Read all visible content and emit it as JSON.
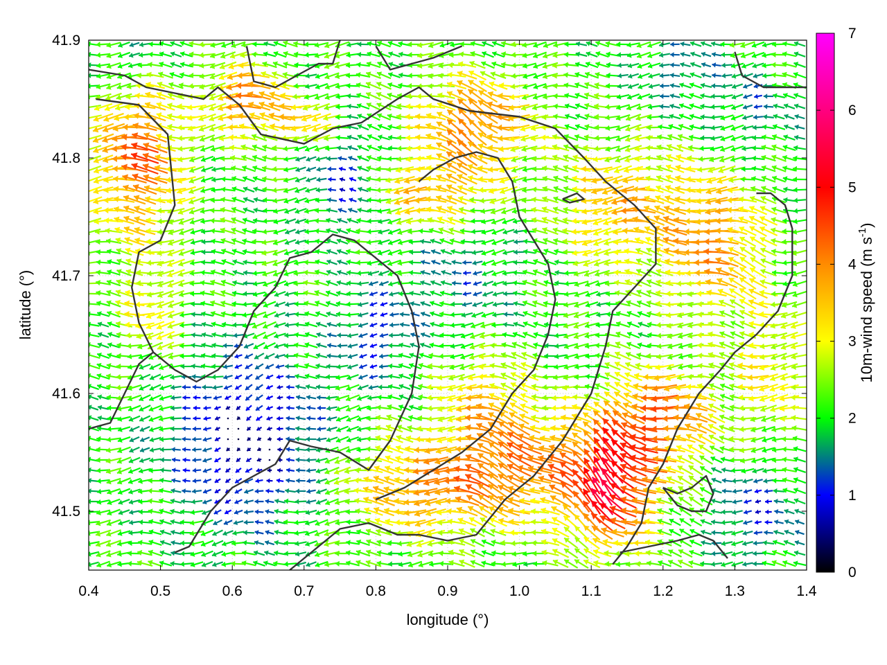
{
  "chart_data": {
    "type": "vector-field",
    "xlabel": "longitude (°)",
    "ylabel": "latitude (°)",
    "colorbar_label": "10m-wind speed (m s",
    "colorbar_label_sup": "-1",
    "colorbar_label_end": ")",
    "xlim": [
      0.4,
      1.4
    ],
    "ylim": [
      41.45,
      41.9
    ],
    "xticks": [
      "0.4",
      "0.5",
      "0.6",
      "0.7",
      "0.8",
      "0.9",
      "1.0",
      "1.1",
      "1.2",
      "1.3",
      "1.4"
    ],
    "yticks": [
      "41.5",
      "41.6",
      "41.7",
      "41.8",
      "41.9"
    ],
    "colorbar_range": [
      0,
      7
    ],
    "colorbar_ticks": [
      "0",
      "1",
      "2",
      "3",
      "4",
      "5",
      "6",
      "7"
    ],
    "colormap": [
      "#000000",
      "#0000ff",
      "#00ff00",
      "#ffff00",
      "#ff8c00",
      "#ff0000",
      "#ff00ff"
    ],
    "grid": "dotted",
    "contour_color": "#333333",
    "contours": [
      [
        [
          0.4,
          41.875
        ],
        [
          0.45,
          41.87
        ],
        [
          0.48,
          41.86
        ],
        [
          0.52,
          41.855
        ],
        [
          0.56,
          41.85
        ],
        [
          0.58,
          41.86
        ],
        [
          0.61,
          41.845
        ],
        [
          0.64,
          41.82
        ],
        [
          0.7,
          41.812
        ],
        [
          0.74,
          41.825
        ],
        [
          0.78,
          41.83
        ],
        [
          0.83,
          41.85
        ],
        [
          0.86,
          41.86
        ],
        [
          0.88,
          41.85
        ],
        [
          0.93,
          41.84
        ],
        [
          1.0,
          41.835
        ],
        [
          1.05,
          41.825
        ],
        [
          1.09,
          41.8
        ],
        [
          1.12,
          41.78
        ],
        [
          1.16,
          41.76
        ],
        [
          1.19,
          41.74
        ],
        [
          1.19,
          41.71
        ],
        [
          1.16,
          41.69
        ],
        [
          1.13,
          41.67
        ],
        [
          1.12,
          41.64
        ],
        [
          1.1,
          41.6
        ],
        [
          1.06,
          41.56
        ],
        [
          1.02,
          41.53
        ],
        [
          0.98,
          41.51
        ],
        [
          0.94,
          41.48
        ],
        [
          0.9,
          41.475
        ],
        [
          0.86,
          41.48
        ],
        [
          0.83,
          41.48
        ],
        [
          0.79,
          41.49
        ],
        [
          0.75,
          41.485
        ],
        [
          0.72,
          41.47
        ],
        [
          0.68,
          41.45
        ]
      ],
      [
        [
          0.41,
          41.85
        ],
        [
          0.47,
          41.845
        ],
        [
          0.51,
          41.82
        ],
        [
          0.52,
          41.76
        ],
        [
          0.5,
          41.73
        ],
        [
          0.47,
          41.72
        ],
        [
          0.46,
          41.69
        ],
        [
          0.47,
          41.66
        ],
        [
          0.49,
          41.635
        ],
        [
          0.52,
          41.62
        ],
        [
          0.55,
          41.61
        ],
        [
          0.58,
          41.62
        ],
        [
          0.61,
          41.64
        ],
        [
          0.63,
          41.67
        ],
        [
          0.66,
          41.69
        ],
        [
          0.68,
          41.715
        ],
        [
          0.71,
          41.72
        ],
        [
          0.74,
          41.735
        ],
        [
          0.77,
          41.73
        ],
        [
          0.8,
          41.715
        ],
        [
          0.83,
          41.7
        ],
        [
          0.85,
          41.67
        ],
        [
          0.86,
          41.64
        ],
        [
          0.85,
          41.6
        ],
        [
          0.82,
          41.56
        ],
        [
          0.79,
          41.535
        ],
        [
          0.75,
          41.55
        ],
        [
          0.71,
          41.555
        ],
        [
          0.68,
          41.56
        ],
        [
          0.66,
          41.54
        ],
        [
          0.63,
          41.53
        ],
        [
          0.6,
          41.52
        ],
        [
          0.57,
          41.5
        ],
        [
          0.54,
          41.47
        ],
        [
          0.52,
          41.465
        ]
      ],
      [
        [
          0.62,
          41.895
        ],
        [
          0.63,
          41.865
        ],
        [
          0.66,
          41.86
        ],
        [
          0.69,
          41.87
        ],
        [
          0.72,
          41.88
        ],
        [
          0.74,
          41.88
        ],
        [
          0.75,
          41.9
        ]
      ],
      [
        [
          0.8,
          41.895
        ],
        [
          0.82,
          41.875
        ],
        [
          0.85,
          41.88
        ],
        [
          0.88,
          41.885
        ],
        [
          0.9,
          41.89
        ],
        [
          0.92,
          41.895
        ]
      ],
      [
        [
          0.86,
          41.78
        ],
        [
          0.88,
          41.79
        ],
        [
          0.91,
          41.8
        ],
        [
          0.94,
          41.805
        ],
        [
          0.97,
          41.8
        ],
        [
          0.99,
          41.78
        ],
        [
          1.0,
          41.75
        ],
        [
          1.02,
          41.73
        ],
        [
          1.04,
          41.71
        ],
        [
          1.05,
          41.68
        ],
        [
          1.04,
          41.65
        ],
        [
          1.02,
          41.62
        ],
        [
          0.99,
          41.6
        ],
        [
          0.96,
          41.57
        ],
        [
          0.92,
          41.55
        ],
        [
          0.88,
          41.535
        ],
        [
          0.84,
          41.52
        ],
        [
          0.8,
          41.51
        ]
      ],
      [
        [
          1.06,
          41.765
        ],
        [
          1.08,
          41.77
        ],
        [
          1.09,
          41.765
        ],
        [
          1.07,
          41.762
        ],
        [
          1.06,
          41.765
        ]
      ],
      [
        [
          1.3,
          41.89
        ],
        [
          1.31,
          41.87
        ],
        [
          1.34,
          41.86
        ],
        [
          1.37,
          41.86
        ],
        [
          1.4,
          41.86
        ]
      ],
      [
        [
          1.33,
          41.77
        ],
        [
          1.35,
          41.77
        ],
        [
          1.37,
          41.76
        ],
        [
          1.38,
          41.74
        ],
        [
          1.38,
          41.7
        ],
        [
          1.36,
          41.67
        ],
        [
          1.33,
          41.65
        ],
        [
          1.3,
          41.635
        ],
        [
          1.28,
          41.62
        ],
        [
          1.25,
          41.6
        ],
        [
          1.22,
          41.57
        ],
        [
          1.2,
          41.54
        ],
        [
          1.18,
          41.52
        ],
        [
          1.17,
          41.49
        ],
        [
          1.15,
          41.47
        ],
        [
          1.13,
          41.455
        ]
      ],
      [
        [
          1.2,
          41.52
        ],
        [
          1.22,
          41.515
        ],
        [
          1.24,
          41.52
        ],
        [
          1.26,
          41.53
        ],
        [
          1.27,
          41.515
        ],
        [
          1.26,
          41.5
        ],
        [
          1.24,
          41.5
        ],
        [
          1.22,
          41.505
        ],
        [
          1.2,
          41.52
        ]
      ],
      [
        [
          1.14,
          41.465
        ],
        [
          1.18,
          41.47
        ],
        [
          1.22,
          41.475
        ],
        [
          1.25,
          41.48
        ],
        [
          1.27,
          41.475
        ],
        [
          1.29,
          41.46
        ]
      ],
      [
        [
          0.4,
          41.57
        ],
        [
          0.43,
          41.575
        ],
        [
          0.45,
          41.6
        ],
        [
          0.47,
          41.625
        ],
        [
          0.49,
          41.635
        ]
      ]
    ]
  }
}
